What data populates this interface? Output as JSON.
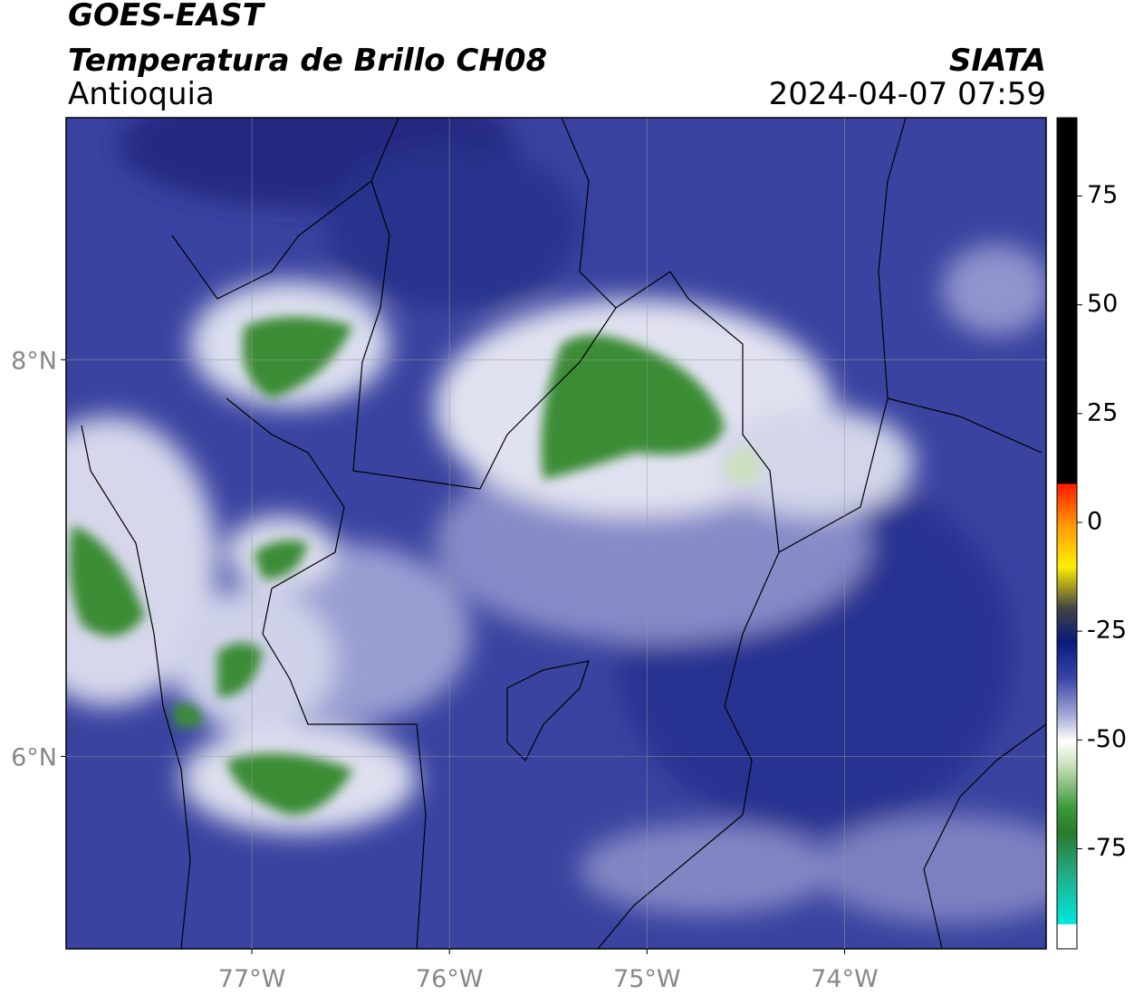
{
  "header": {
    "satellite": "GOES-EAST",
    "product": "Temperatura de Brillo CH08",
    "region": "Antioquia",
    "organization": "SIATA",
    "datetime": "2024-04-07 07:59"
  },
  "map": {
    "xlim": [
      -77.94,
      -72.98
    ],
    "ylim": [
      5.03,
      9.22
    ],
    "xticks": [
      {
        "value": -77,
        "label": "77°W"
      },
      {
        "value": -76,
        "label": "76°W"
      },
      {
        "value": -75,
        "label": "75°W"
      },
      {
        "value": -74,
        "label": "74°W"
      }
    ],
    "yticks": [
      {
        "value": 6,
        "label": "6°N"
      },
      {
        "value": 8,
        "label": "8°N"
      }
    ],
    "grid": true
  },
  "colorbar": {
    "lim": [
      -98,
      93
    ],
    "ticks": [
      -75,
      -50,
      -25,
      0,
      25,
      50,
      75
    ]
  }
}
